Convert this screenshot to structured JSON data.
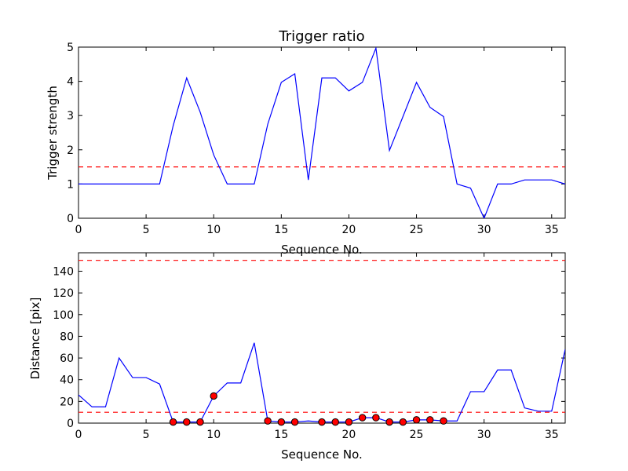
{
  "chart_data": [
    {
      "type": "line",
      "title": "Trigger ratio",
      "xlabel": "Sequence No.",
      "ylabel": "Trigger strength",
      "xlim": [
        0,
        36
      ],
      "ylim": [
        0,
        5
      ],
      "xticks": [
        0,
        5,
        10,
        15,
        20,
        25,
        30,
        35
      ],
      "yticks": [
        0,
        1,
        2,
        3,
        4,
        5
      ],
      "grid": false,
      "series": [
        {
          "color": "#0000ff",
          "x": [
            0,
            1,
            2,
            3,
            4,
            5,
            6,
            7,
            8,
            9,
            10,
            11,
            12,
            13,
            14,
            15,
            16,
            17,
            18,
            19,
            20,
            21,
            22,
            23,
            24,
            25,
            26,
            27,
            28,
            29,
            30,
            31,
            32,
            33,
            34,
            35,
            36
          ],
          "values": [
            1.0,
            1.0,
            1.0,
            1.0,
            1.0,
            1.0,
            1.0,
            2.7,
            4.1,
            3.1,
            1.85,
            1.0,
            1.0,
            1.0,
            2.75,
            3.97,
            4.22,
            1.12,
            4.1,
            4.1,
            3.72,
            3.97,
            4.97,
            1.98,
            2.97,
            3.97,
            3.24,
            2.97,
            1.0,
            0.88,
            0.0,
            1.0,
            1.0,
            1.12,
            1.12,
            1.12,
            1.0
          ]
        }
      ],
      "hlines": [
        {
          "y": 1.5,
          "color": "#ff0000",
          "style": "dashed"
        }
      ]
    },
    {
      "type": "line",
      "title": "",
      "xlabel": "Sequence No.",
      "ylabel": "Distance [pix]",
      "xlim": [
        0,
        36
      ],
      "ylim": [
        0,
        157
      ],
      "xticks": [
        0,
        5,
        10,
        15,
        20,
        25,
        30,
        35
      ],
      "yticks": [
        0,
        20,
        40,
        60,
        80,
        100,
        120,
        140
      ],
      "grid": false,
      "series": [
        {
          "color": "#0000ff",
          "x": [
            0,
            1,
            2,
            3,
            4,
            5,
            6,
            7,
            8,
            9,
            10,
            11,
            12,
            13,
            14,
            15,
            16,
            17,
            18,
            19,
            20,
            21,
            22,
            23,
            24,
            25,
            26,
            27,
            28,
            29,
            30,
            31,
            32,
            33,
            34,
            35,
            36
          ],
          "values": [
            26,
            15,
            15,
            60,
            42,
            42,
            36,
            1,
            1,
            1,
            25,
            37,
            37,
            74,
            2,
            1,
            1,
            2,
            1,
            1,
            1,
            5,
            5,
            1,
            1,
            3,
            3,
            2,
            2,
            29,
            29,
            49,
            49,
            14,
            11,
            11,
            68
          ]
        }
      ],
      "markers": {
        "color": "#ff0000",
        "x": [
          7,
          8,
          9,
          10,
          14,
          15,
          16,
          18,
          19,
          20,
          21,
          22,
          23,
          24,
          25,
          26,
          27
        ],
        "values": [
          1,
          1,
          1,
          25,
          2,
          1,
          1,
          1,
          1,
          1,
          5,
          5,
          1,
          1,
          3,
          3,
          2
        ]
      },
      "hlines": [
        {
          "y": 10,
          "color": "#ff0000",
          "style": "dashed"
        },
        {
          "y": 150,
          "color": "#ff0000",
          "style": "dashed"
        }
      ]
    }
  ]
}
